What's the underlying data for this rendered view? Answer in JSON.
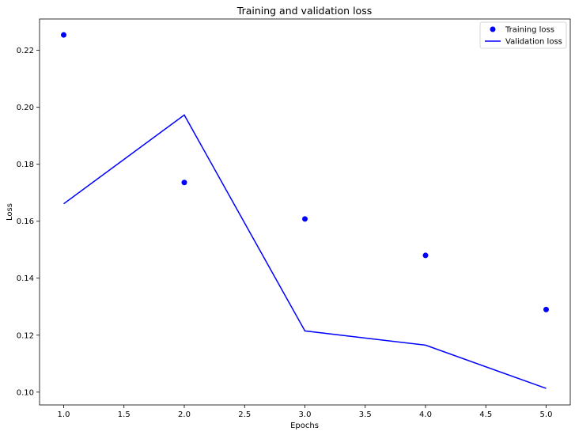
{
  "chart_data": {
    "type": "line",
    "title": "Training and validation loss",
    "xlabel": "Epochs",
    "ylabel": "Loss",
    "xlim": [
      0.8,
      5.2
    ],
    "ylim": [
      0.0955,
      0.231
    ],
    "xticks": [
      1.0,
      1.5,
      2.0,
      2.5,
      3.0,
      3.5,
      4.0,
      4.5,
      5.0
    ],
    "xtick_labels": [
      "1.0",
      "1.5",
      "2.0",
      "2.5",
      "3.0",
      "3.5",
      "4.0",
      "4.5",
      "5.0"
    ],
    "yticks": [
      0.1,
      0.12,
      0.14,
      0.16,
      0.18,
      0.2,
      0.22
    ],
    "ytick_labels": [
      "0.10",
      "0.12",
      "0.14",
      "0.16",
      "0.18",
      "0.20",
      "0.22"
    ],
    "grid": false,
    "legend_position": "top-right",
    "series": [
      {
        "name": "Training loss",
        "style": "markers",
        "color": "#0000ff",
        "x": [
          1,
          2,
          3,
          4,
          5
        ],
        "y": [
          0.2254,
          0.1736,
          0.1608,
          0.148,
          0.129
        ]
      },
      {
        "name": "Validation loss",
        "style": "line",
        "color": "#0000ff",
        "x": [
          1,
          2,
          3,
          4,
          5
        ],
        "y": [
          0.1661,
          0.1973,
          0.1215,
          0.1165,
          0.1013
        ]
      }
    ]
  }
}
